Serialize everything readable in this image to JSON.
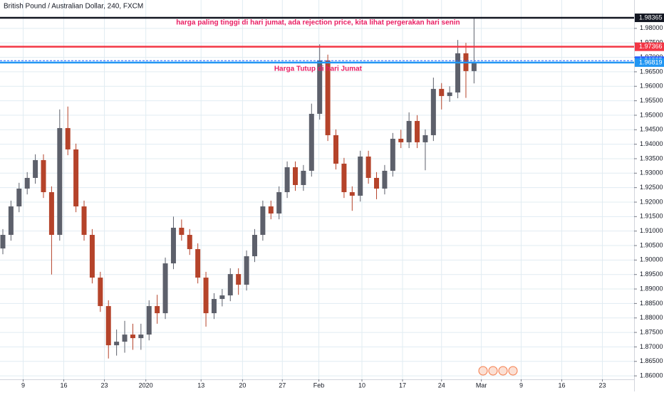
{
  "chart_data": {
    "type": "candlestick",
    "title": "British Pound / Australian Dollar, 240, FXCM",
    "open": [
      1.904,
      1.90869,
      1.91852,
      1.92467,
      1.92836,
      1.93451,
      1.92344,
      1.90869,
      1.94557,
      1.9382,
      1.91852,
      1.90869,
      1.89393,
      1.8841,
      1.87057,
      1.8718,
      1.87426,
      1.87303,
      1.87426,
      1.8841,
      1.88164,
      1.89885,
      1.91115,
      1.90869,
      1.90377,
      1.89393,
      1.88164,
      1.88656,
      1.88779,
      1.89516,
      1.89148,
      1.90131,
      1.90869,
      1.91852,
      1.91607,
      1.92344,
      1.93205,
      1.9259,
      1.93082,
      1.95049,
      1.96893,
      1.94311,
      1.93328,
      1.92344,
      1.92221,
      1.93574,
      1.92836,
      1.92467,
      1.93082,
      1.94188,
      1.94066,
      1.94803,
      1.94066,
      1.94311,
      1.9591,
      1.95664,
      1.95787,
      1.9714,
      1.96525
    ],
    "high": [
      1.91069,
      1.92052,
      1.92667,
      1.93036,
      1.93651,
      1.93651,
      1.92544,
      1.952,
      1.953,
      1.9402,
      1.92052,
      1.91069,
      1.89593,
      1.8861,
      1.876,
      1.879,
      1.878,
      1.878,
      1.8861,
      1.888,
      1.90085,
      1.915,
      1.914,
      1.91069,
      1.90577,
      1.89593,
      1.88856,
      1.89,
      1.89716,
      1.89716,
      1.90331,
      1.91069,
      1.92052,
      1.92052,
      1.92544,
      1.93405,
      1.93405,
      1.93282,
      1.954,
      1.9745,
      1.97093,
      1.94511,
      1.93528,
      1.92544,
      1.93774,
      1.93774,
      1.93036,
      1.93282,
      1.94388,
      1.945,
      1.951,
      1.95003,
      1.94511,
      1.963,
      1.9611,
      1.96,
      1.976,
      1.975,
      1.98365
    ],
    "low": [
      1.902,
      1.90669,
      1.91652,
      1.92267,
      1.92636,
      1.92144,
      1.895,
      1.90669,
      1.9362,
      1.91652,
      1.90669,
      1.89193,
      1.8821,
      1.866,
      1.867,
      1.868,
      1.869,
      1.869,
      1.87226,
      1.878,
      1.87964,
      1.89685,
      1.90669,
      1.90177,
      1.89193,
      1.877,
      1.87964,
      1.884,
      1.88579,
      1.888,
      1.88948,
      1.89931,
      1.90669,
      1.91407,
      1.91407,
      1.92144,
      1.9239,
      1.9239,
      1.92882,
      1.94849,
      1.94111,
      1.93128,
      1.92144,
      1.917,
      1.92021,
      1.92636,
      1.921,
      1.92267,
      1.92882,
      1.93866,
      1.93866,
      1.93866,
      1.931,
      1.94111,
      1.952,
      1.95464,
      1.95587,
      1.956,
      1.961
    ],
    "close": [
      1.90869,
      1.91852,
      1.92467,
      1.92836,
      1.93451,
      1.92344,
      1.90869,
      1.94557,
      1.9382,
      1.91852,
      1.90869,
      1.89393,
      1.8841,
      1.87057,
      1.8718,
      1.87426,
      1.87303,
      1.87426,
      1.8841,
      1.88164,
      1.89885,
      1.91115,
      1.90869,
      1.90377,
      1.89393,
      1.88164,
      1.88656,
      1.88779,
      1.89516,
      1.89148,
      1.90131,
      1.90869,
      1.91852,
      1.91607,
      1.92344,
      1.93205,
      1.9259,
      1.93082,
      1.95049,
      1.96893,
      1.94311,
      1.93328,
      1.92344,
      1.92221,
      1.93574,
      1.92836,
      1.92467,
      1.93082,
      1.94188,
      1.94066,
      1.94803,
      1.94066,
      1.94311,
      1.9591,
      1.95664,
      1.95787,
      1.9714,
      1.96525,
      1.96819
    ],
    "up_color": "#5d606b",
    "down_color": "#b5432a",
    "xlim": [
      -0.35,
      77.7
    ],
    "xticks": [
      {
        "value": 2.5,
        "label": "9"
      },
      {
        "value": 7.5,
        "label": "16"
      },
      {
        "value": 12.5,
        "label": "23"
      },
      {
        "value": 17.6,
        "label": "2020"
      },
      {
        "value": 24.4,
        "label": "13"
      },
      {
        "value": 29.5,
        "label": "20"
      },
      {
        "value": 34.4,
        "label": "27"
      },
      {
        "value": 38.9,
        "label": "Feb"
      },
      {
        "value": 44.2,
        "label": "10"
      },
      {
        "value": 49.2,
        "label": "17"
      },
      {
        "value": 54,
        "label": "24"
      },
      {
        "value": 58.9,
        "label": "Mar"
      },
      {
        "value": 63.8,
        "label": "9"
      },
      {
        "value": 68.8,
        "label": "16"
      },
      {
        "value": 73.8,
        "label": "23"
      }
    ],
    "ylim": [
      1.8588,
      1.9898
    ],
    "yticks": [
      {
        "value": 1.86,
        "label": "1.86000"
      },
      {
        "value": 1.865,
        "label": "1.86500"
      },
      {
        "value": 1.87,
        "label": "1.87000"
      },
      {
        "value": 1.875,
        "label": "1.87500"
      },
      {
        "value": 1.88,
        "label": "1.88000"
      },
      {
        "value": 1.885,
        "label": "1.88500"
      },
      {
        "value": 1.89,
        "label": "1.89000"
      },
      {
        "value": 1.895,
        "label": "1.89500"
      },
      {
        "value": 1.9,
        "label": "1.90000"
      },
      {
        "value": 1.905,
        "label": "1.90500"
      },
      {
        "value": 1.91,
        "label": "1.91000"
      },
      {
        "value": 1.915,
        "label": "1.91500"
      },
      {
        "value": 1.92,
        "label": "1.92000"
      },
      {
        "value": 1.925,
        "label": "1.92500"
      },
      {
        "value": 1.93,
        "label": "1.93000"
      },
      {
        "value": 1.935,
        "label": "1.93500"
      },
      {
        "value": 1.94,
        "label": "1.94000"
      },
      {
        "value": 1.945,
        "label": "1.94500"
      },
      {
        "value": 1.95,
        "label": "1.95000"
      },
      {
        "value": 1.955,
        "label": "1.95500"
      },
      {
        "value": 1.96,
        "label": "1.96000"
      },
      {
        "value": 1.965,
        "label": "1.96500"
      },
      {
        "value": 1.97,
        "label": "1.97000"
      },
      {
        "value": 1.975,
        "label": "1.97500"
      },
      {
        "value": 1.98,
        "label": "1.98000"
      }
    ],
    "grid": true,
    "levels": [
      {
        "price": 1.98365,
        "color": "#131722",
        "style": "solid"
      },
      {
        "price": 1.97366,
        "color": "#f23645",
        "style": "solid"
      },
      {
        "price": 1.96885,
        "color": "#2962ff",
        "style": "dashed"
      },
      {
        "price": 1.96819,
        "color": "#2196f3",
        "style": "solid"
      }
    ],
    "annotations": [
      {
        "text": "harga paling tinggi di hari jumat, ada rejection price, kita lihat pergerakan hari senin",
        "price": 1.982,
        "index": 38.8,
        "color": "#e91e63"
      },
      {
        "text": "Harga Tutup di hari Jumat",
        "price": 1.966,
        "index": 38.8,
        "color": "#e91e63"
      }
    ]
  }
}
